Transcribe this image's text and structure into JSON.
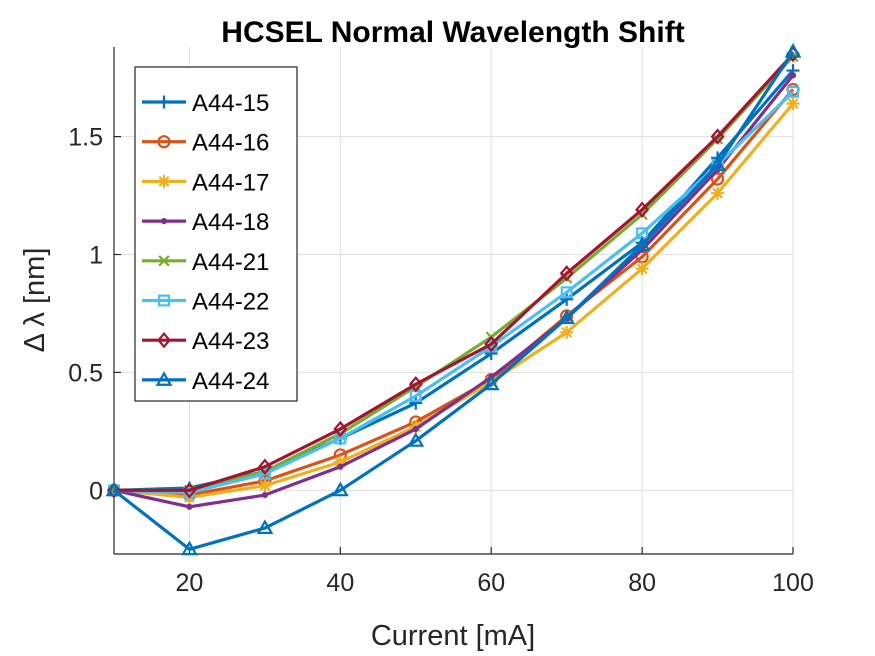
{
  "chart_data": {
    "type": "line",
    "title": "HCSEL Normal Wavelength Shift",
    "xlabel": "Current [mA]",
    "ylabel": "Δ λ [nm]",
    "xlim": [
      10,
      100
    ],
    "ylim": [
      -0.27,
      1.88
    ],
    "x_ticks": [
      20,
      40,
      60,
      80,
      100
    ],
    "y_ticks": [
      0,
      0.5,
      1,
      1.5
    ],
    "y_tick_labels": [
      "0",
      "0.5",
      "1",
      "1.5"
    ],
    "grid": true,
    "legend_position": "top-left",
    "x": [
      10,
      20,
      30,
      40,
      50,
      60,
      70,
      80,
      90,
      100
    ],
    "series": [
      {
        "name": "A44-15",
        "color": "#0072BD",
        "marker": "plus",
        "values": [
          0,
          0.01,
          0.08,
          0.22,
          0.37,
          0.58,
          0.81,
          1.05,
          1.41,
          1.78
        ]
      },
      {
        "name": "A44-16",
        "color": "#D95319",
        "marker": "circle",
        "values": [
          0,
          -0.02,
          0.04,
          0.15,
          0.29,
          0.47,
          0.74,
          0.99,
          1.32,
          1.7
        ]
      },
      {
        "name": "A44-17",
        "color": "#EDB120",
        "marker": "asterisk",
        "values": [
          0,
          -0.03,
          0.02,
          0.12,
          0.27,
          0.46,
          0.67,
          0.94,
          1.26,
          1.64
        ]
      },
      {
        "name": "A44-18",
        "color": "#7E2F8E",
        "marker": "point",
        "values": [
          0,
          -0.07,
          -0.02,
          0.1,
          0.26,
          0.48,
          0.73,
          1.02,
          1.36,
          1.76
        ]
      },
      {
        "name": "A44-21",
        "color": "#77AC30",
        "marker": "x",
        "values": [
          0,
          0.0,
          0.08,
          0.24,
          0.44,
          0.65,
          0.9,
          1.17,
          1.49,
          1.84
        ]
      },
      {
        "name": "A44-22",
        "color": "#4DBEEE",
        "marker": "square",
        "values": [
          0,
          -0.01,
          0.07,
          0.22,
          0.4,
          0.61,
          0.84,
          1.09,
          1.38,
          1.69
        ]
      },
      {
        "name": "A44-23",
        "color": "#A2142F",
        "marker": "diamond",
        "values": [
          0,
          0.0,
          0.1,
          0.26,
          0.45,
          0.62,
          0.92,
          1.19,
          1.5,
          1.85
        ]
      },
      {
        "name": "A44-24",
        "color": "#0072BD",
        "marker": "triangle",
        "values": [
          0,
          -0.25,
          -0.16,
          0.0,
          0.21,
          0.45,
          0.73,
          1.04,
          1.38,
          1.86
        ]
      }
    ]
  }
}
